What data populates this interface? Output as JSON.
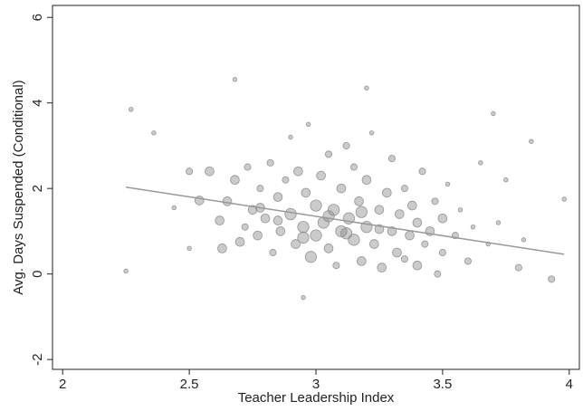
{
  "chart_data": {
    "type": "scatter",
    "x_label": "Teacher Leadership Index",
    "y_label": "Avg. Days Suspended (Conditional)",
    "xlim": [
      1.96,
      4.04
    ],
    "ylim": [
      -2.23,
      6.28
    ],
    "xticks": [
      2,
      2.5,
      3,
      3.5,
      4
    ],
    "yticks": [
      -2,
      0,
      2,
      4,
      6
    ],
    "grid": false,
    "series": [
      {
        "color": "#8c8c8c",
        "x": [
          2.25,
          2.27,
          2.36,
          2.68,
          2.95,
          3.2,
          3.7,
          3.93,
          3.98,
          3.85,
          2.5,
          2.44,
          2.5,
          2.58,
          2.54,
          2.62,
          2.63,
          2.65,
          2.68,
          2.7,
          2.72,
          2.73,
          2.75,
          2.77,
          2.78,
          2.8,
          2.82,
          2.83,
          2.85,
          2.86,
          2.88,
          2.9,
          2.9,
          2.92,
          2.93,
          2.95,
          2.96,
          2.97,
          2.98,
          3.0,
          3.0,
          3.02,
          3.03,
          3.05,
          3.05,
          3.07,
          3.08,
          3.1,
          3.1,
          3.12,
          3.13,
          3.15,
          3.15,
          3.17,
          3.18,
          3.2,
          3.2,
          3.22,
          3.23,
          3.25,
          3.26,
          3.28,
          3.3,
          3.3,
          3.32,
          3.33,
          3.35,
          3.37,
          3.38,
          3.4,
          3.4,
          3.42,
          3.43,
          3.45,
          3.47,
          3.48,
          3.5,
          3.5,
          3.52,
          3.55,
          3.57,
          3.6,
          3.62,
          3.65,
          3.68,
          3.72,
          3.75,
          3.8,
          3.82,
          2.95,
          3.05,
          3.12,
          3.18,
          2.85,
          3.25,
          3.35,
          2.78
        ],
        "y": [
          0.07,
          3.85,
          3.3,
          4.55,
          -0.55,
          4.35,
          3.75,
          -0.12,
          1.75,
          3.1,
          0.6,
          1.55,
          2.4,
          2.4,
          1.72,
          1.25,
          0.6,
          1.7,
          2.2,
          0.75,
          1.1,
          2.5,
          1.5,
          0.9,
          2.0,
          1.3,
          2.6,
          0.5,
          1.8,
          1.0,
          2.2,
          1.4,
          3.2,
          0.7,
          2.4,
          1.1,
          1.9,
          3.5,
          0.4,
          1.6,
          0.9,
          2.3,
          1.2,
          0.6,
          2.8,
          1.5,
          0.2,
          1.0,
          2.0,
          3.0,
          1.3,
          0.8,
          2.5,
          1.7,
          0.3,
          1.1,
          2.2,
          3.3,
          0.7,
          1.5,
          0.15,
          1.9,
          1.0,
          2.7,
          0.5,
          1.4,
          2.0,
          0.9,
          1.6,
          0.2,
          1.2,
          2.4,
          0.7,
          1.0,
          1.7,
          0.0,
          1.3,
          0.5,
          2.1,
          0.9,
          1.5,
          0.3,
          1.1,
          2.6,
          0.7,
          1.2,
          2.2,
          0.15,
          0.8,
          0.85,
          1.35,
          0.95,
          1.45,
          1.25,
          1.05,
          0.35,
          1.55
        ],
        "sizes": [
          1,
          1,
          1,
          1,
          1,
          1,
          1,
          2,
          1,
          1,
          1,
          1,
          2,
          3,
          3,
          3,
          3,
          3,
          3,
          3,
          2,
          2,
          3,
          3,
          2,
          3,
          2,
          2,
          3,
          3,
          2,
          4,
          1,
          3,
          3,
          4,
          3,
          1,
          4,
          4,
          4,
          3,
          4,
          3,
          2,
          4,
          2,
          4,
          3,
          2,
          4,
          4,
          2,
          3,
          3,
          4,
          3,
          1,
          3,
          3,
          3,
          3,
          3,
          2,
          3,
          3,
          2,
          3,
          3,
          3,
          3,
          2,
          2,
          3,
          2,
          2,
          3,
          2,
          1,
          2,
          1,
          2,
          1,
          1,
          1,
          1,
          1,
          2,
          1,
          4,
          4,
          4,
          4,
          3,
          3,
          2,
          3
        ]
      }
    ],
    "fit_line": {
      "color": "#999999",
      "x": [
        2.25,
        3.98
      ],
      "y": [
        2.03,
        0.46
      ]
    }
  }
}
